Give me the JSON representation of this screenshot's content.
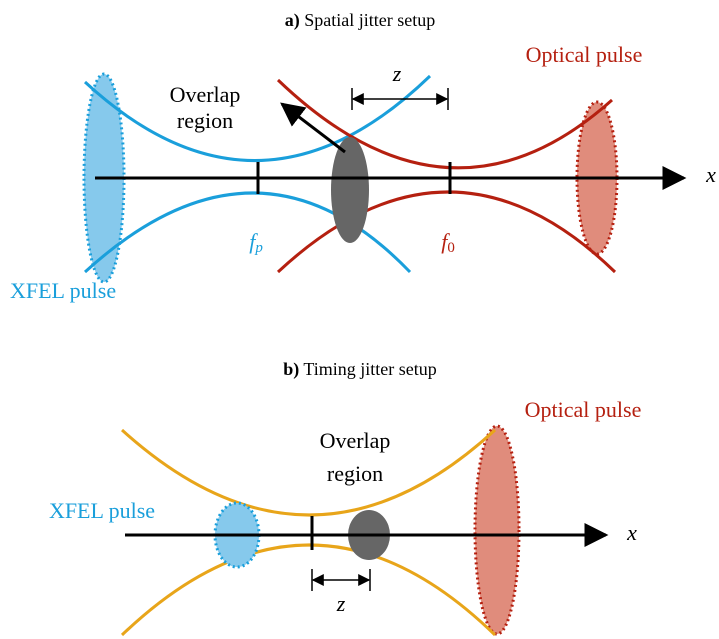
{
  "panel_a": {
    "title_tag": "a)",
    "title": "Spatial jitter setup",
    "optical_label": "Optical pulse",
    "overlap_label": [
      "Overlap",
      "region"
    ],
    "z_label": "z",
    "x_label": "x",
    "focus_xfel": {
      "symbol": "f",
      "subscript": "p"
    },
    "focus_optical": {
      "symbol": "f",
      "subscript": "0"
    },
    "xfel_label": "XFEL pulse"
  },
  "panel_b": {
    "title_tag": "b)",
    "title": "Timing jitter setup",
    "optical_label": "Optical pulse",
    "overlap_label": [
      "Overlap",
      "region"
    ],
    "xfel_label": "XFEL pulse",
    "x_label": "x",
    "z_label": "z"
  }
}
